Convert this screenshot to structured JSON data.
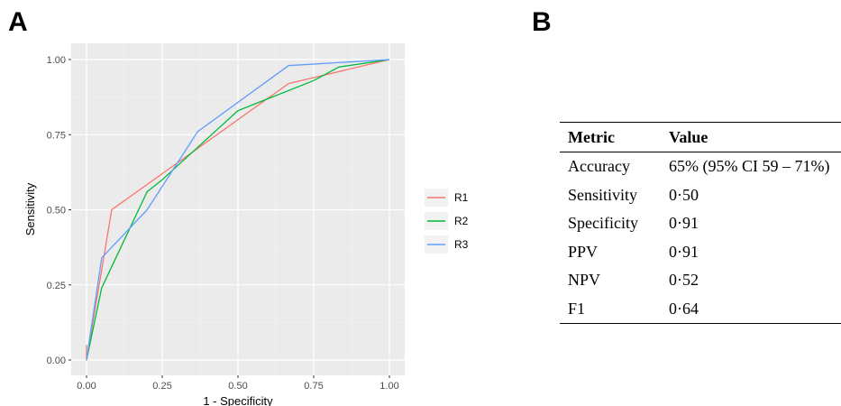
{
  "panels": {
    "a": "A",
    "b": "B"
  },
  "chart_data": {
    "type": "line",
    "xlabel": "1 - Specificity",
    "ylabel": "Sensitivity",
    "xlim": [
      0,
      1
    ],
    "ylim": [
      0,
      1
    ],
    "x_ticks": [
      0,
      0.25,
      0.5,
      0.75,
      1.0
    ],
    "x_tick_labels": [
      "0.00",
      "0.25",
      "0.50",
      "0.75",
      "1.00"
    ],
    "y_ticks": [
      0,
      0.25,
      0.5,
      0.75,
      1.0
    ],
    "y_tick_labels": [
      "0.00",
      "0.25",
      "0.50",
      "0.75",
      "1.00"
    ],
    "grid": true,
    "legend_position": "right",
    "background_color": "#ebebeb",
    "series": [
      {
        "name": "R1",
        "color": "#f8766d",
        "x": [
          0,
          0,
          0.05,
          0.083,
          0.25,
          0.5,
          0.667,
          0.75,
          1.0
        ],
        "y": [
          0.05,
          0,
          0.3,
          0.5,
          0.62,
          0.8,
          0.92,
          0.94,
          1.0
        ]
      },
      {
        "name": "R2",
        "color": "#00ba38",
        "x": [
          0,
          0.05,
          0.2,
          0.25,
          0.5,
          0.75,
          0.833,
          1.0
        ],
        "y": [
          0,
          0.24,
          0.56,
          0.6,
          0.83,
          0.93,
          0.975,
          1.0
        ]
      },
      {
        "name": "R3",
        "color": "#619cff",
        "x": [
          0,
          0.05,
          0.2,
          0.367,
          0.667,
          1.0
        ],
        "y": [
          0,
          0.34,
          0.5,
          0.76,
          0.98,
          1.0
        ]
      }
    ]
  },
  "metrics_table": {
    "headers": [
      "Metric",
      "Value"
    ],
    "rows": [
      [
        "Accuracy",
        "65% (95% CI 59 – 71%)"
      ],
      [
        "Sensitivity",
        "0·50"
      ],
      [
        "Specificity",
        "0·91"
      ],
      [
        "PPV",
        "0·91"
      ],
      [
        "NPV",
        "0·52"
      ],
      [
        "F1",
        "0·64"
      ]
    ]
  }
}
